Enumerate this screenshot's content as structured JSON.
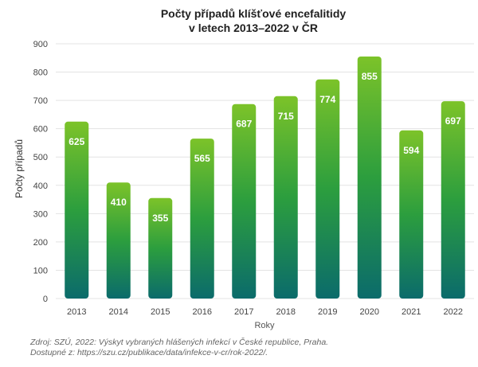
{
  "chart_data": {
    "type": "bar",
    "title_lines": [
      "Počty případů klíšťové encefalitidy",
      "v letech 2013–2022 v ČR"
    ],
    "categories": [
      "2013",
      "2014",
      "2015",
      "2016",
      "2017",
      "2018",
      "2019",
      "2020",
      "2021",
      "2022"
    ],
    "values": [
      625,
      410,
      355,
      565,
      687,
      715,
      774,
      855,
      594,
      697
    ],
    "xlabel": "Roky",
    "ylabel": "Počty případů",
    "ylim": [
      0,
      900
    ],
    "yticks": [
      0,
      100,
      200,
      300,
      400,
      500,
      600,
      700,
      800,
      900
    ],
    "grid": true,
    "data_labels": true,
    "colors": {
      "bar_top": "#7cc329",
      "bar_mid": "#2c9e3e",
      "bar_bottom": "#0b6b6b"
    }
  },
  "source": {
    "line1": "Zdroj: SZÚ, 2022: Výskyt vybraných hlášených infekcí v České republice, Praha.",
    "line2": "Dostupné z: https://szu.cz/publikace/data/infekce-v-cr/rok-2022/."
  }
}
